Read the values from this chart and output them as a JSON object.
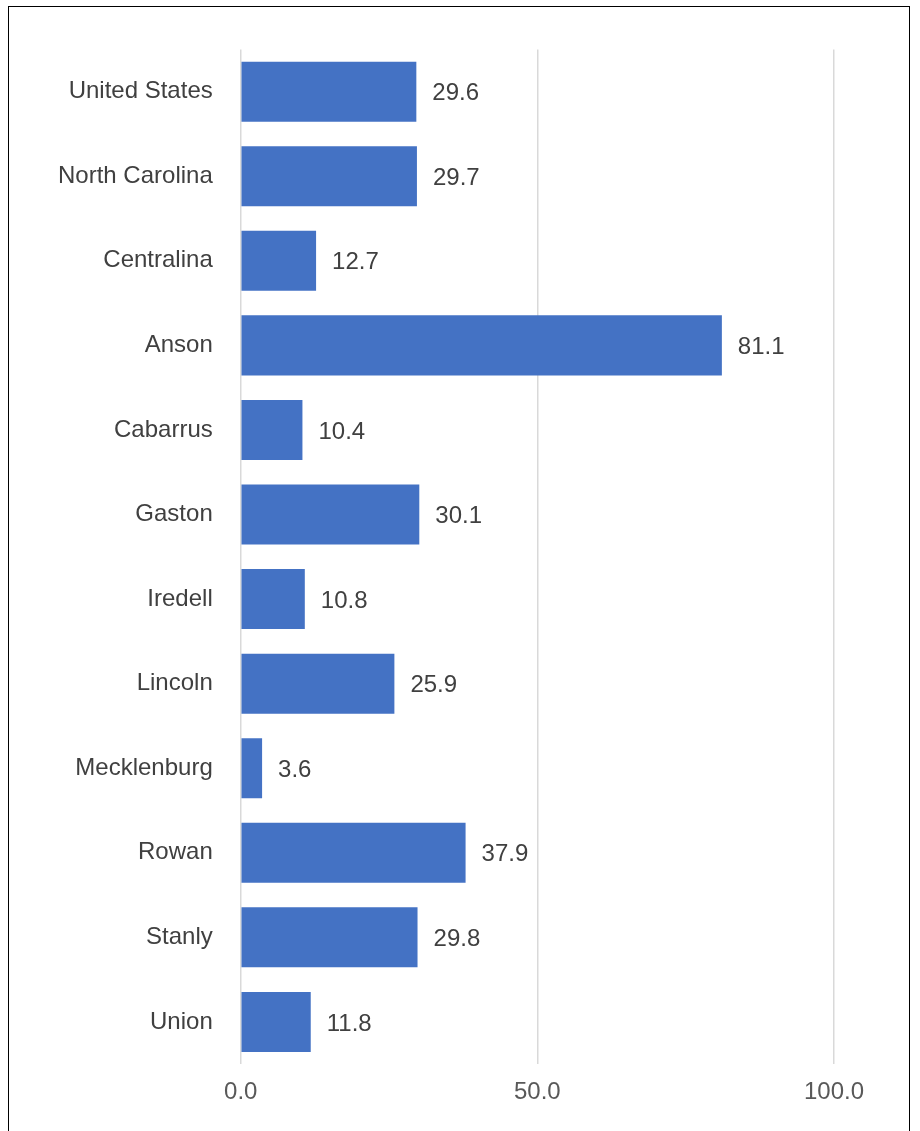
{
  "chart_data": {
    "type": "bar",
    "orientation": "horizontal",
    "categories": [
      "United States",
      "North Carolina",
      "Centralina",
      "Anson",
      "Cabarrus",
      "Gaston",
      "Iredell",
      "Lincoln",
      "Mecklenburg",
      "Rowan",
      "Stanly",
      "Union"
    ],
    "values": [
      29.6,
      29.7,
      12.7,
      81.1,
      10.4,
      30.1,
      10.8,
      25.9,
      3.6,
      37.9,
      29.8,
      11.8
    ],
    "color": "#4472c4",
    "xlim": [
      0,
      100
    ],
    "xticks": [
      {
        "value": 0,
        "label": "0.0"
      },
      {
        "value": 50,
        "label": "50.0"
      },
      {
        "value": 100,
        "label": "100.0"
      }
    ],
    "grid": "x",
    "data_labels": true,
    "legend": false
  }
}
